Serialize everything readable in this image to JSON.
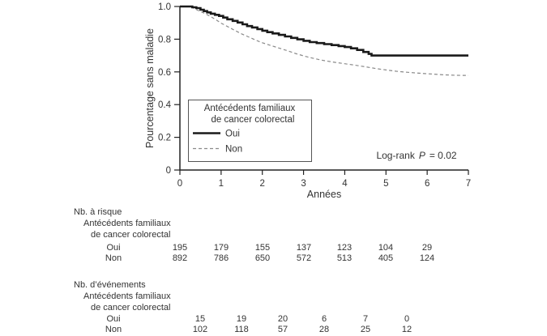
{
  "figure": {
    "background": "#ffffff",
    "text_color": "#333333"
  },
  "chart_data": {
    "type": "line",
    "subtype": "kaplan-meier-step",
    "title": "",
    "xlabel": "Années",
    "ylabel": "Pourcentage sans maladie",
    "xlim": [
      0,
      7
    ],
    "ylim": [
      0,
      1.0
    ],
    "grid": false,
    "x_ticks": [
      {
        "t": 0,
        "label": "0"
      },
      {
        "t": 1,
        "label": "1"
      },
      {
        "t": 2,
        "label": "2"
      },
      {
        "t": 3,
        "label": "3"
      },
      {
        "t": 4,
        "label": "4"
      },
      {
        "t": 5,
        "label": "5"
      },
      {
        "t": 6,
        "label": "6"
      },
      {
        "t": 7,
        "label": "7"
      }
    ],
    "y_ticks": [
      {
        "v": 1.0,
        "label": "1.0"
      },
      {
        "v": 0.8,
        "label": "0.8"
      },
      {
        "v": 0.6,
        "label": "0.6"
      },
      {
        "v": 0.4,
        "label": "0.4"
      },
      {
        "v": 0.2,
        "label": "0.2"
      },
      {
        "v": 0,
        "label": "0"
      }
    ],
    "legend": {
      "position": "lower-left",
      "title_line1": "Antécédents familiaux",
      "title_line2": "de cancer colorectal",
      "entries": [
        {
          "label": "Oui",
          "style": "solid",
          "color": "#1a1a1a",
          "width": 2.6
        },
        {
          "label": "Non",
          "style": "dashed",
          "color": "#8a8a8a",
          "width": 1.2
        }
      ]
    },
    "annotation": {
      "prefix": "Log-rank",
      "p_symbol": "P",
      "suffix": "= 0.02"
    },
    "series": [
      {
        "name": "Non",
        "style": "dashed",
        "color": "#8a8a8a",
        "width": 1.2,
        "step": false,
        "points": [
          [
            0,
            1.0
          ],
          [
            0.25,
            1.0
          ],
          [
            0.45,
            0.975
          ],
          [
            0.6,
            0.958
          ],
          [
            0.75,
            0.938
          ],
          [
            0.9,
            0.915
          ],
          [
            1.0,
            0.898
          ],
          [
            1.15,
            0.878
          ],
          [
            1.3,
            0.858
          ],
          [
            1.5,
            0.832
          ],
          [
            1.7,
            0.81
          ],
          [
            1.9,
            0.788
          ],
          [
            2.0,
            0.778
          ],
          [
            2.2,
            0.762
          ],
          [
            2.4,
            0.746
          ],
          [
            2.6,
            0.73
          ],
          [
            2.8,
            0.713
          ],
          [
            3.0,
            0.698
          ],
          [
            3.2,
            0.685
          ],
          [
            3.4,
            0.674
          ],
          [
            3.6,
            0.665
          ],
          [
            3.8,
            0.657
          ],
          [
            4.0,
            0.65
          ],
          [
            4.25,
            0.641
          ],
          [
            4.5,
            0.631
          ],
          [
            4.75,
            0.621
          ],
          [
            5.0,
            0.612
          ],
          [
            5.25,
            0.604
          ],
          [
            5.5,
            0.598
          ],
          [
            5.8,
            0.592
          ],
          [
            6.1,
            0.587
          ],
          [
            6.4,
            0.582
          ],
          [
            6.7,
            0.579
          ],
          [
            7.0,
            0.578
          ]
        ]
      },
      {
        "name": "Oui",
        "style": "solid",
        "color": "#1a1a1a",
        "width": 2.6,
        "step": true,
        "points": [
          [
            0,
            1.0
          ],
          [
            0.3,
            0.995
          ],
          [
            0.4,
            0.99
          ],
          [
            0.5,
            0.98
          ],
          [
            0.58,
            0.972
          ],
          [
            0.66,
            0.964
          ],
          [
            0.75,
            0.956
          ],
          [
            0.85,
            0.949
          ],
          [
            0.95,
            0.942
          ],
          [
            1.05,
            0.932
          ],
          [
            1.15,
            0.922
          ],
          [
            1.28,
            0.912
          ],
          [
            1.4,
            0.902
          ],
          [
            1.52,
            0.891
          ],
          [
            1.63,
            0.88
          ],
          [
            1.75,
            0.872
          ],
          [
            1.88,
            0.862
          ],
          [
            2.0,
            0.852
          ],
          [
            2.12,
            0.843
          ],
          [
            2.25,
            0.835
          ],
          [
            2.4,
            0.826
          ],
          [
            2.55,
            0.817
          ],
          [
            2.7,
            0.808
          ],
          [
            2.85,
            0.799
          ],
          [
            3.0,
            0.79
          ],
          [
            3.15,
            0.782
          ],
          [
            3.32,
            0.776
          ],
          [
            3.5,
            0.77
          ],
          [
            3.68,
            0.764
          ],
          [
            3.85,
            0.758
          ],
          [
            4.0,
            0.752
          ],
          [
            4.15,
            0.744
          ],
          [
            4.3,
            0.734
          ],
          [
            4.45,
            0.722
          ],
          [
            4.58,
            0.71
          ],
          [
            4.65,
            0.7
          ],
          [
            7.0,
            0.7
          ]
        ]
      }
    ]
  },
  "risk_table": {
    "title": "Nb. à risque",
    "subtitle1": "Antécédents familiaux",
    "subtitle2": "de cancer colorectal",
    "value_times": [
      0,
      1,
      2,
      3,
      4,
      5,
      6
    ],
    "rows": [
      {
        "label": "Oui",
        "values": [
          195,
          179,
          155,
          137,
          123,
          104,
          29
        ]
      },
      {
        "label": "Non",
        "values": [
          892,
          786,
          650,
          572,
          513,
          405,
          124
        ]
      }
    ]
  },
  "events_table": {
    "title": "Nb. d’événements",
    "subtitle1": "Antécédents familiaux",
    "subtitle2": "de cancer colorectal",
    "value_times": [
      0.5,
      1.5,
      2.5,
      3.5,
      4.5,
      5.5
    ],
    "rows": [
      {
        "label": "Oui",
        "values": [
          15,
          19,
          20,
          6,
          7,
          0
        ]
      },
      {
        "label": "Non",
        "values": [
          102,
          118,
          57,
          28,
          25,
          12
        ]
      }
    ]
  }
}
